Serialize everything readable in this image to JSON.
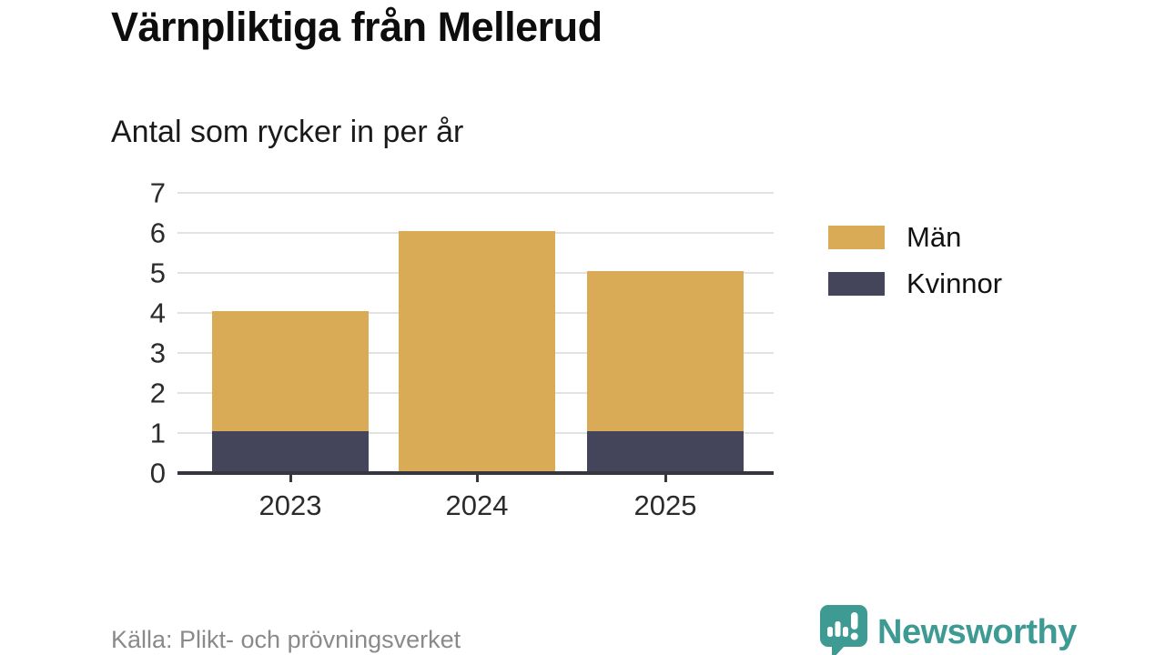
{
  "page": {
    "title": "Värnpliktiga från Mellerud",
    "subtitle": "Antal som rycker in per år"
  },
  "chart_data": {
    "type": "bar",
    "stacked": true,
    "title": "Värnpliktiga från Mellerud",
    "subtitle": "Antal som rycker in per år",
    "categories": [
      "2023",
      "2024",
      "2025"
    ],
    "series": [
      {
        "name": "Kvinnor",
        "color": "#44455a",
        "values": [
          1,
          0,
          1
        ]
      },
      {
        "name": "Män",
        "color": "#d9ab57",
        "values": [
          3,
          6,
          4
        ]
      }
    ],
    "totals": [
      4,
      6,
      5
    ],
    "xlabel": "",
    "ylabel": "",
    "ylim": [
      0,
      7
    ],
    "yticks": [
      0,
      1,
      2,
      3,
      4,
      5,
      6,
      7
    ],
    "grid": true,
    "legend": {
      "position": "right",
      "items": [
        {
          "label": "Män",
          "color": "#d9ab57"
        },
        {
          "label": "Kvinnor",
          "color": "#44455a"
        }
      ]
    }
  },
  "footer": {
    "source": "Källa: Plikt- och prövningsverket",
    "brand_name": "Newsworthy"
  },
  "colors": {
    "men_gold": "#d9ab57",
    "women_slate": "#44455a",
    "brand_teal": "#3e9b94",
    "gridline": "#e2e2e2",
    "axis": "#36363e",
    "source_gray": "#8a8a8a"
  }
}
